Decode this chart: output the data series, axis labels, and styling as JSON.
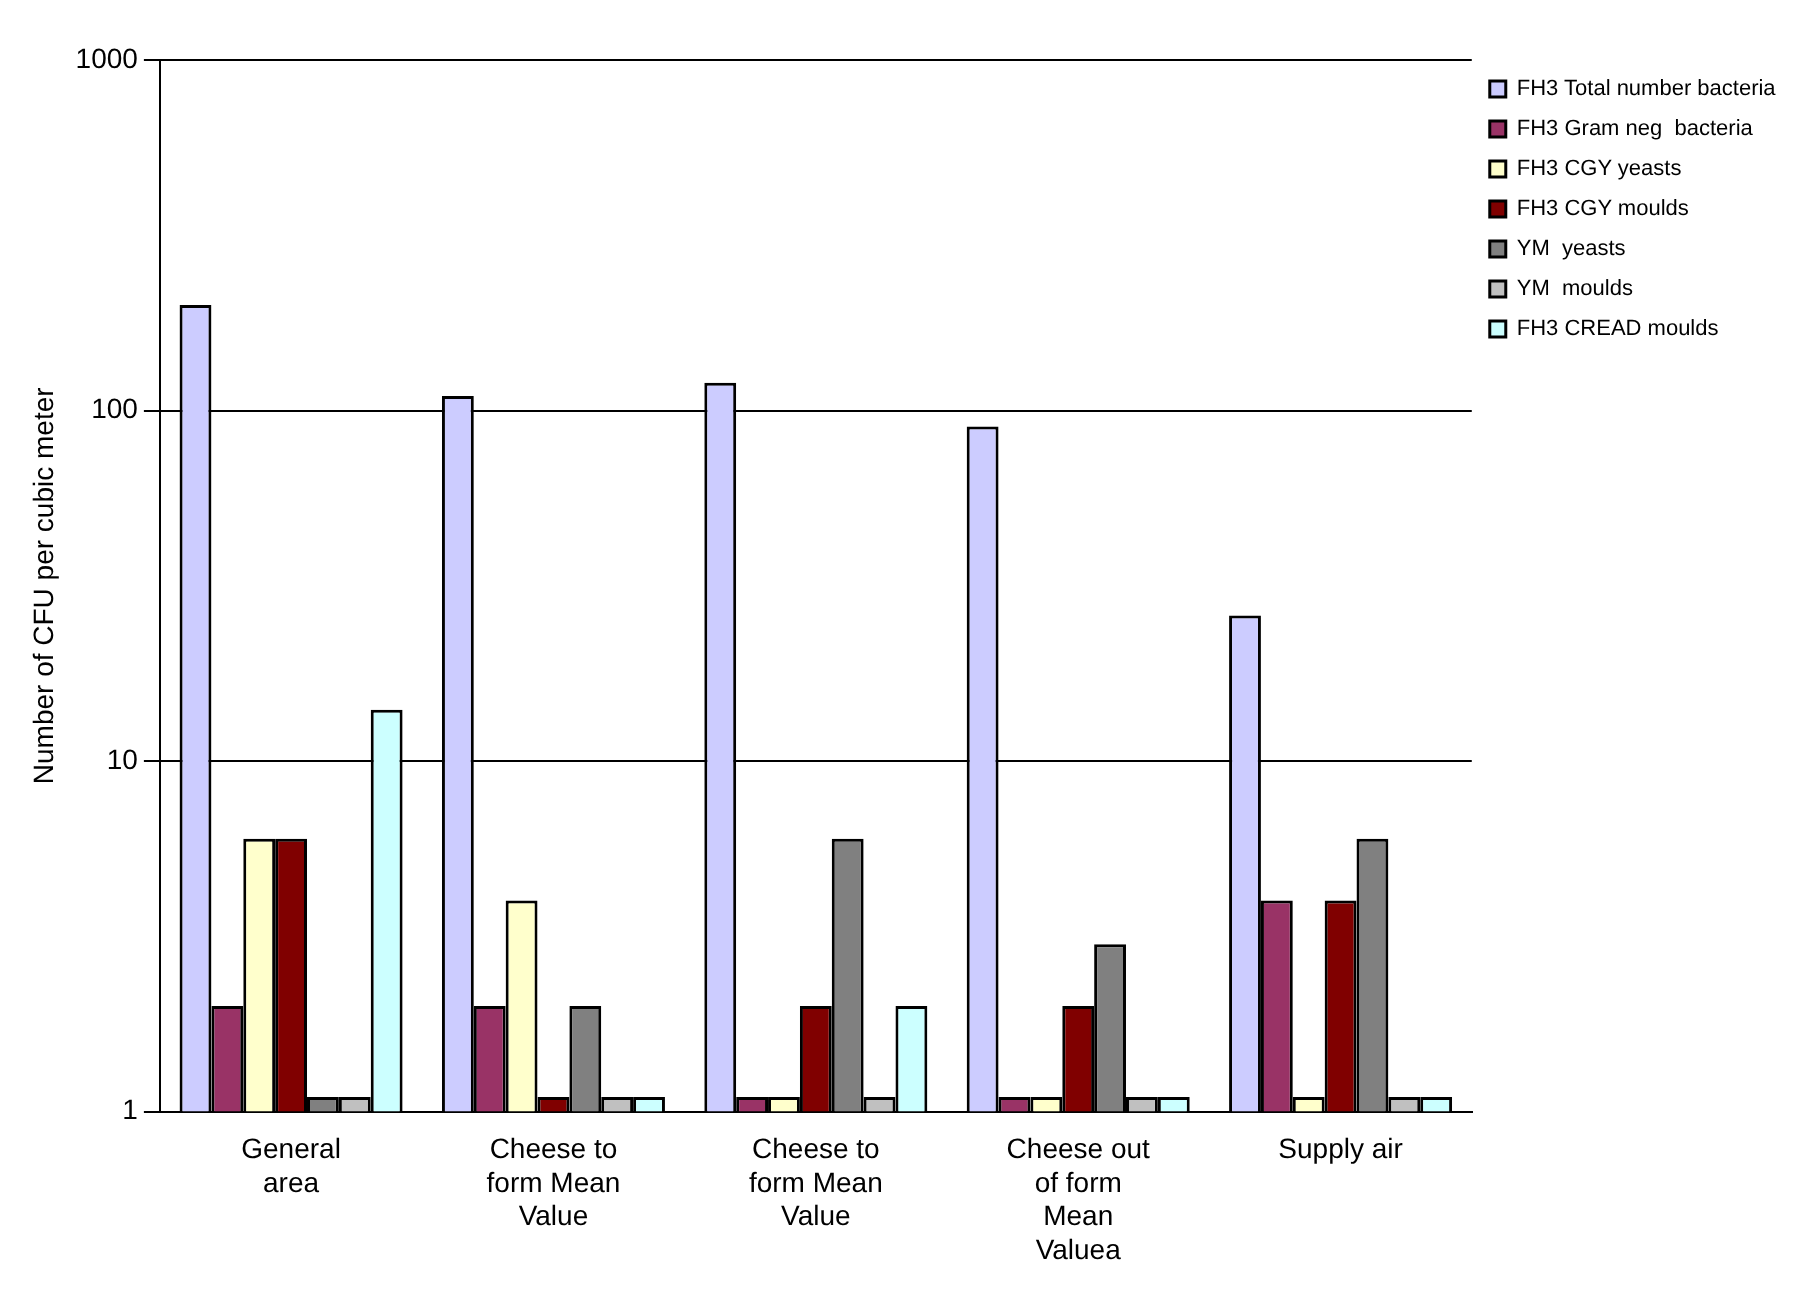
{
  "chart_data": {
    "type": "bar",
    "ylabel": "Number of CFU per cubic meter",
    "categories": [
      "General area",
      "Cheese to form Mean Value",
      "Cheese to form Mean Value",
      "Cheese out of form Mean Valuea",
      "Supply air"
    ],
    "series": [
      {
        "name": "FH3 Total number bacteria",
        "color": "#ccccff",
        "values": [
          200,
          110,
          120,
          90,
          26
        ]
      },
      {
        "name": "FH3 Gram neg  bacteria",
        "color": "#993366",
        "values": [
          2,
          2,
          1.1,
          1.1,
          4
        ]
      },
      {
        "name": "FH3 CGY yeasts",
        "color": "#ffffcc",
        "values": [
          6,
          4,
          1.1,
          1.1,
          1.1
        ]
      },
      {
        "name": "FH3 CGY moulds",
        "color": "#800000",
        "values": [
          6,
          1.1,
          2,
          2,
          4
        ]
      },
      {
        "name": "YM  yeasts",
        "color": "#808080",
        "values": [
          1.1,
          2,
          6,
          3,
          6
        ]
      },
      {
        "name": "YM  moulds",
        "color": "#c0c0c0",
        "values": [
          1.1,
          1.1,
          1.1,
          1.1,
          1.1
        ]
      },
      {
        "name": "FH3 CREAD moulds",
        "color": "#ccffff",
        "values": [
          14,
          1.1,
          2,
          1.1,
          1.1
        ]
      }
    ],
    "log": "y",
    "ylim": [
      1,
      1000
    ],
    "yticks": [
      1,
      10,
      100,
      1000
    ],
    "grid": "y",
    "legend": "top right"
  }
}
